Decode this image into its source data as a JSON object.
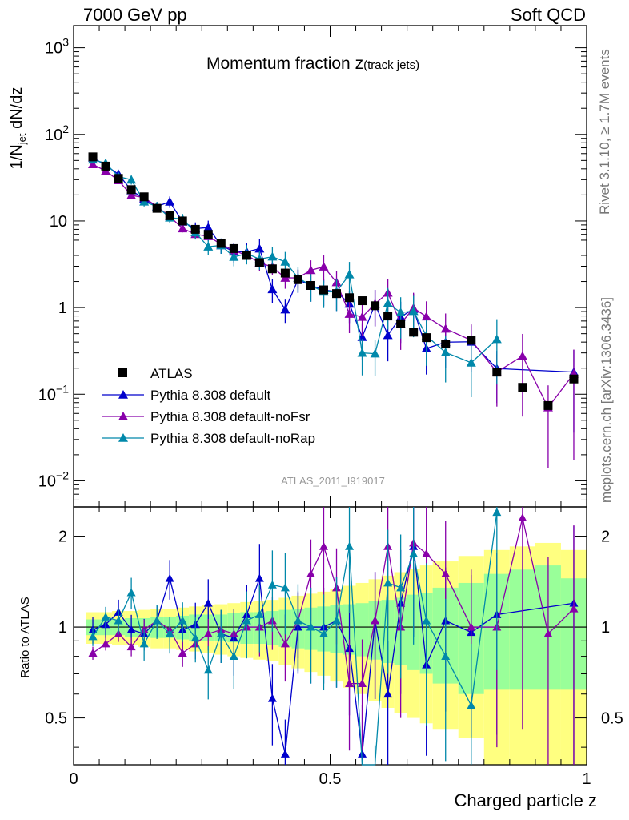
{
  "header": {
    "left": "7000 GeV pp",
    "right": "Soft QCD"
  },
  "side_labels": {
    "rivet": "Rivet 3.1.10, ≥ 1.7M events",
    "mcplots": "mcplots.cern.ch [arXiv:1306.3436]"
  },
  "chart_data": {
    "type": "scatter",
    "title_main": "Momentum fraction z",
    "title_sub": "(track jets)",
    "watermark": "ATLAS_2011_I919017",
    "xlabel": "Charged particle z",
    "ylabel_main": "1/N",
    "ylabel_sub": "jet",
    "ylabel_tail": " dN/dz",
    "ratio_ylabel": "Ratio to ATLAS",
    "xlim": [
      0,
      1
    ],
    "ylim": [
      0.005,
      1800
    ],
    "yscale": "log",
    "ratio_ylim": [
      0.35,
      2.5
    ],
    "ratio_yscale": "log",
    "x_ticks": [
      "0",
      "0.5",
      "1"
    ],
    "y_ticks": [
      {
        "base": "10",
        "exp": "3",
        "v": 1000
      },
      {
        "base": "10",
        "exp": "2",
        "v": 100
      },
      {
        "base": "10",
        "exp": "",
        "v": 10
      },
      {
        "base": "1",
        "exp": "",
        "v": 1
      },
      {
        "base": "10",
        "exp": "−1",
        "v": 0.1
      },
      {
        "base": "10",
        "exp": "−2",
        "v": 0.01
      }
    ],
    "ratio_ticks": [
      "0.5",
      "1",
      "2"
    ],
    "legend": {
      "position": "bottom-left"
    },
    "atlas": {
      "name": "ATLAS",
      "color": "#000000",
      "x": [
        0.0375,
        0.0625,
        0.0875,
        0.1125,
        0.1375,
        0.1625,
        0.1875,
        0.2125,
        0.2375,
        0.2625,
        0.2875,
        0.3125,
        0.3375,
        0.3625,
        0.3875,
        0.4125,
        0.4375,
        0.4625,
        0.4875,
        0.5125,
        0.5375,
        0.5625,
        0.5875,
        0.6125,
        0.6375,
        0.6625,
        0.6875,
        0.725,
        0.775,
        0.825,
        0.875,
        0.925,
        0.975
      ],
      "y": [
        55,
        43,
        31,
        23,
        19,
        14,
        11.5,
        10,
        8,
        7,
        5.5,
        4.8,
        4,
        3.3,
        2.8,
        2.5,
        2.1,
        1.8,
        1.6,
        1.45,
        1.3,
        1.2,
        1.05,
        0.8,
        0.65,
        0.52,
        0.45,
        0.38,
        0.42,
        0.18,
        0.12,
        0.074,
        0.15
      ],
      "band_edges": [
        0.025,
        0.05,
        0.075,
        0.1,
        0.125,
        0.15,
        0.175,
        0.2,
        0.225,
        0.25,
        0.275,
        0.3,
        0.325,
        0.35,
        0.375,
        0.4,
        0.425,
        0.45,
        0.475,
        0.5,
        0.525,
        0.55,
        0.575,
        0.6,
        0.625,
        0.65,
        0.675,
        0.7,
        0.75,
        0.8,
        0.85,
        0.9,
        0.95,
        1.0
      ],
      "stat_hi": [
        1.06,
        1.06,
        1.06,
        1.07,
        1.07,
        1.08,
        1.08,
        1.09,
        1.1,
        1.1,
        1.1,
        1.11,
        1.12,
        1.12,
        1.13,
        1.14,
        1.15,
        1.16,
        1.17,
        1.18,
        1.19,
        1.2,
        1.22,
        1.23,
        1.25,
        1.28,
        1.3,
        1.35,
        1.4,
        1.5,
        1.55,
        1.6,
        1.45
      ],
      "stat_lo": [
        0.94,
        0.94,
        0.94,
        0.93,
        0.93,
        0.92,
        0.92,
        0.91,
        0.9,
        0.9,
        0.9,
        0.89,
        0.88,
        0.88,
        0.87,
        0.86,
        0.85,
        0.84,
        0.83,
        0.82,
        0.81,
        0.8,
        0.78,
        0.76,
        0.75,
        0.72,
        0.7,
        0.65,
        0.6,
        0.62,
        0.62,
        0.62,
        0.62
      ],
      "tot_hi": [
        1.12,
        1.12,
        1.13,
        1.13,
        1.14,
        1.15,
        1.15,
        1.16,
        1.17,
        1.18,
        1.19,
        1.2,
        1.21,
        1.22,
        1.23,
        1.25,
        1.27,
        1.29,
        1.31,
        1.34,
        1.37,
        1.4,
        1.44,
        1.48,
        1.52,
        1.56,
        1.6,
        1.65,
        1.72,
        1.8,
        1.85,
        1.9,
        1.8
      ],
      "tot_lo": [
        0.88,
        0.88,
        0.87,
        0.87,
        0.86,
        0.85,
        0.85,
        0.84,
        0.83,
        0.82,
        0.81,
        0.8,
        0.79,
        0.78,
        0.77,
        0.75,
        0.73,
        0.71,
        0.69,
        0.66,
        0.63,
        0.6,
        0.57,
        0.54,
        0.52,
        0.5,
        0.48,
        0.46,
        0.43,
        0.35,
        0.35,
        0.35,
        0.35
      ]
    },
    "series": [
      {
        "name": "Pythia 8.308 default",
        "color": "#0000cc",
        "x": [
          0.0375,
          0.0625,
          0.0875,
          0.1125,
          0.1375,
          0.1625,
          0.1875,
          0.2125,
          0.2375,
          0.2625,
          0.2875,
          0.3125,
          0.3375,
          0.3625,
          0.3875,
          0.4125,
          0.4375,
          0.4625,
          0.4875,
          0.5125,
          0.5375,
          0.5625,
          0.5875,
          0.6125,
          0.6375,
          0.6625,
          0.6875,
          0.725,
          0.775,
          0.825,
          0.975
        ],
        "ratio": [
          0.98,
          1.02,
          1.12,
          0.98,
          0.95,
          1.05,
          1.45,
          0.98,
          1.02,
          1.2,
          0.95,
          0.92,
          1.1,
          1.45,
          0.58,
          0.38,
          1.0,
          1.0,
          1.0,
          1.05,
          0.85,
          0.38,
          1.05,
          0.6,
          1.2,
          1.85,
          0.75,
          1.05,
          0.96,
          1.1,
          1.2
        ],
        "err": [
          0.1,
          0.1,
          0.1,
          0.12,
          0.12,
          0.12,
          0.15,
          0.15,
          0.18,
          0.2,
          0.2,
          0.25,
          0.25,
          0.3,
          0.3,
          0.3,
          0.3,
          0.35,
          0.35,
          0.4,
          0.4,
          0.45,
          0.45,
          0.5,
          0.5,
          0.5,
          0.5,
          0.5,
          0.55,
          0.6,
          0.8
        ]
      },
      {
        "name": "Pythia 8.308 default-noFsr",
        "color": "#8800aa",
        "x": [
          0.0375,
          0.0625,
          0.0875,
          0.1125,
          0.1375,
          0.1625,
          0.1875,
          0.2125,
          0.2375,
          0.2625,
          0.2875,
          0.3125,
          0.3375,
          0.3625,
          0.3875,
          0.4125,
          0.4375,
          0.4625,
          0.4875,
          0.5125,
          0.5375,
          0.5625,
          0.5875,
          0.6125,
          0.6375,
          0.6625,
          0.6875,
          0.725,
          0.775,
          0.825,
          0.875,
          0.925,
          0.975
        ],
        "ratio": [
          0.82,
          0.88,
          0.95,
          0.86,
          0.98,
          1.05,
          0.98,
          0.82,
          0.88,
          0.95,
          0.98,
          0.95,
          1.0,
          1.0,
          1.05,
          0.88,
          1.05,
          1.5,
          1.85,
          1.35,
          0.65,
          0.65,
          1.05,
          1.85,
          1.0,
          1.9,
          1.75,
          1.5,
          1.0,
          1.0,
          2.3,
          0.95,
          1.15
        ],
        "err": [
          0.05,
          0.05,
          0.06,
          0.07,
          0.08,
          0.08,
          0.09,
          0.1,
          0.11,
          0.12,
          0.14,
          0.15,
          0.17,
          0.2,
          0.2,
          0.25,
          0.25,
          0.3,
          0.35,
          0.35,
          0.4,
          0.4,
          0.45,
          0.45,
          0.5,
          0.5,
          0.5,
          0.5,
          0.55,
          0.6,
          0.8,
          0.8,
          0.9
        ]
      },
      {
        "name": "Pythia 8.308 default-noRap",
        "color": "#0088aa",
        "x": [
          0.0375,
          0.0625,
          0.0875,
          0.1125,
          0.1375,
          0.1625,
          0.1875,
          0.2125,
          0.2375,
          0.2625,
          0.2875,
          0.3125,
          0.3375,
          0.3625,
          0.3875,
          0.4125,
          0.4375,
          0.4625,
          0.4875,
          0.5125,
          0.5375,
          0.5625,
          0.5875,
          0.6125,
          0.6375,
          0.6625,
          0.6875,
          0.725,
          0.775,
          0.825
        ],
        "ratio": [
          0.93,
          1.08,
          1.05,
          1.3,
          0.88,
          1.05,
          0.95,
          1.05,
          0.92,
          0.72,
          0.95,
          0.8,
          1.05,
          1.1,
          1.38,
          1.35,
          1.05,
          1.0,
          0.95,
          1.05,
          1.85,
          0.25,
          0.28,
          1.4,
          1.35,
          1.75,
          1.05,
          0.8,
          0.55,
          2.4
        ],
        "err": [
          0.07,
          0.08,
          0.1,
          0.12,
          0.12,
          0.13,
          0.14,
          0.15,
          0.17,
          0.2,
          0.2,
          0.22,
          0.25,
          0.25,
          0.3,
          0.3,
          0.32,
          0.35,
          0.35,
          0.4,
          0.4,
          0.45,
          0.45,
          0.5,
          0.5,
          0.5,
          0.55,
          0.55,
          0.6,
          0.7
        ]
      }
    ]
  }
}
